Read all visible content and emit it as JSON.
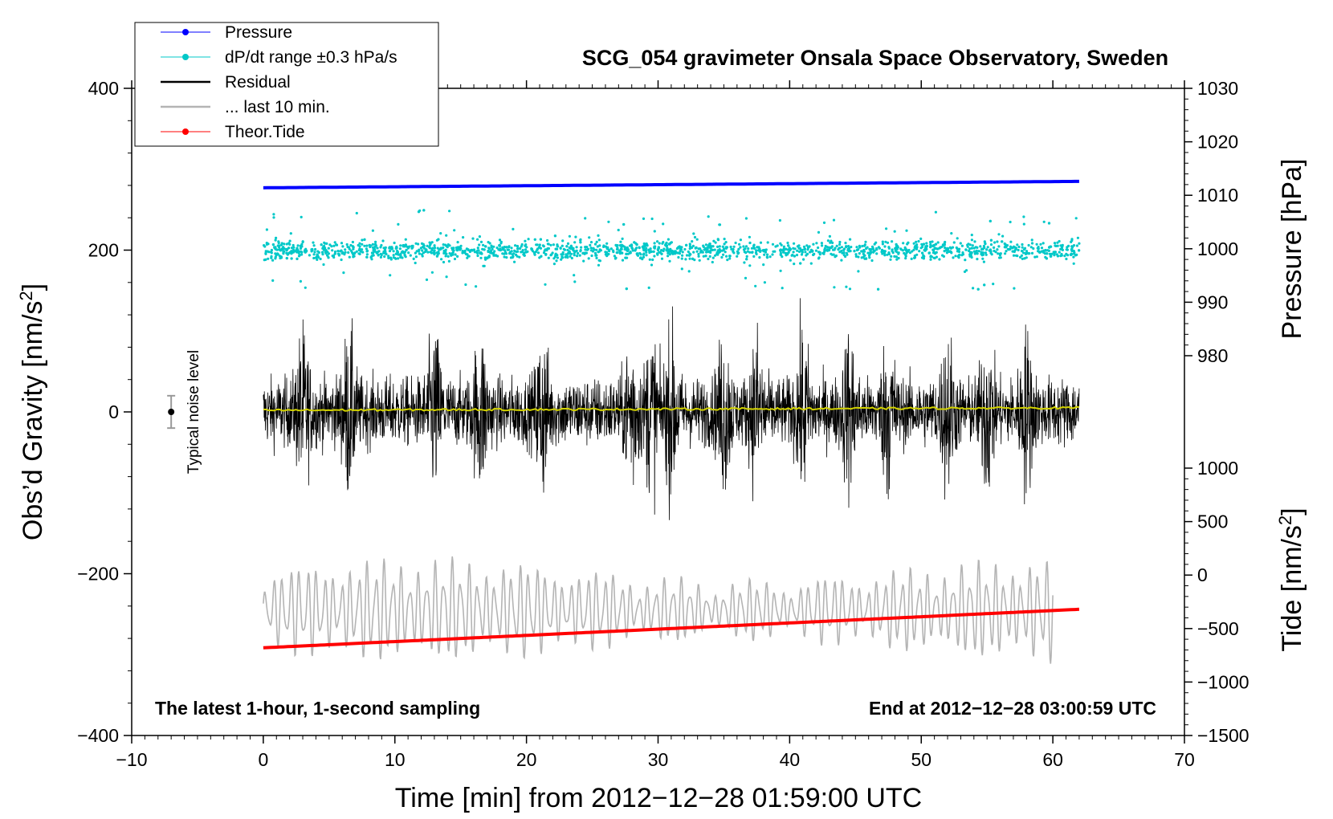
{
  "chart_data": {
    "type": "line",
    "title": "SCG_054 gravimeter Onsala Space Observatory, Sweden",
    "xlabel": "Time [min] from 2012−12−28 01:59:00 UTC",
    "ylabel_left": "Obs’d Gravity [nm/s",
    "ylabel_left_sup": "2",
    "ylabel_left_end": "]",
    "ylabel_right_top": "Pressure [hPa]",
    "ylabel_right_bottom": "Tide [nm/s",
    "ylabel_right_bottom_sup": "2",
    "ylabel_right_bottom_end": "]",
    "xlim": [
      -10,
      70
    ],
    "ylim_left": [
      -400,
      400
    ],
    "x_ticks": [
      -10,
      0,
      10,
      20,
      30,
      40,
      50,
      60,
      70
    ],
    "x_tick_labels": [
      "−10",
      "0",
      "10",
      "20",
      "30",
      "40",
      "50",
      "60",
      "70"
    ],
    "y_left_ticks": [
      400,
      200,
      0,
      -200,
      -400
    ],
    "y_left_tick_labels": [
      "400",
      "200",
      "0",
      "−200",
      "−400"
    ],
    "pressure_axis": {
      "ticks": [
        1030,
        1020,
        1010,
        1000,
        990,
        980
      ],
      "tick_labels": [
        "1030",
        "1020",
        "1010",
        "1000",
        "990",
        "980"
      ],
      "range": [
        980,
        1030
      ]
    },
    "tide_axis": {
      "ticks": [
        1000,
        500,
        0,
        -500,
        -1000,
        -1500
      ],
      "tick_labels": [
        "1000",
        "500",
        "0",
        "−500",
        "−1000",
        "−1500"
      ],
      "range": [
        -1500,
        1000
      ]
    },
    "legend": [
      {
        "label": "Pressure",
        "color": "#0000ff",
        "marker": true
      },
      {
        "label": "dP/dt range ±0.3 hPa/s",
        "color": "#00c8c8",
        "marker": true
      },
      {
        "label": "Residual",
        "color": "#000000",
        "marker": false
      },
      {
        "label": "... last 10 min.",
        "color": "#b4b4b4",
        "marker": false
      },
      {
        "label": "Theor.Tide",
        "color": "#ff0000",
        "marker": true
      }
    ],
    "series": [
      {
        "name": "Pressure",
        "axis": "pressure",
        "color": "#0000ff",
        "x_start": 0,
        "x_end": 62,
        "y_start": 1011.4,
        "y_end": 1012.6
      },
      {
        "name": "dP/dt range ±0.3 hPa/s",
        "axis": "left",
        "color": "#00c8c8",
        "x_start": 0,
        "x_end": 62,
        "center": 200,
        "spread": 12
      },
      {
        "name": "Residual",
        "axis": "left",
        "color": "#000000",
        "x_start": 0,
        "x_end": 62,
        "center": 0,
        "typical_amplitude": 60
      },
      {
        "name": "Residual mean",
        "axis": "left",
        "color": "#d2d200",
        "x_start": 0,
        "x_end": 62,
        "y_start": 2,
        "y_end": 5
      },
      {
        "name": "... last 10 min.",
        "axis": "left",
        "color": "#b4b4b4",
        "x_start": 0,
        "x_end": 60,
        "center": -245,
        "typical_amplitude": 45
      },
      {
        "name": "Theor.Tide",
        "axis": "tide",
        "color": "#ff0000",
        "x_start": 0,
        "x_end": 62,
        "y_start": -680,
        "y_end": -320
      }
    ],
    "annotations": {
      "bottom_left": "The latest 1-hour, 1-second sampling",
      "bottom_right": "End at 2012−12−28 03:00:59 UTC",
      "noise_label": "Typical noise level",
      "noise_x": -7,
      "noise_center": 0,
      "noise_halfwidth": 20
    }
  }
}
